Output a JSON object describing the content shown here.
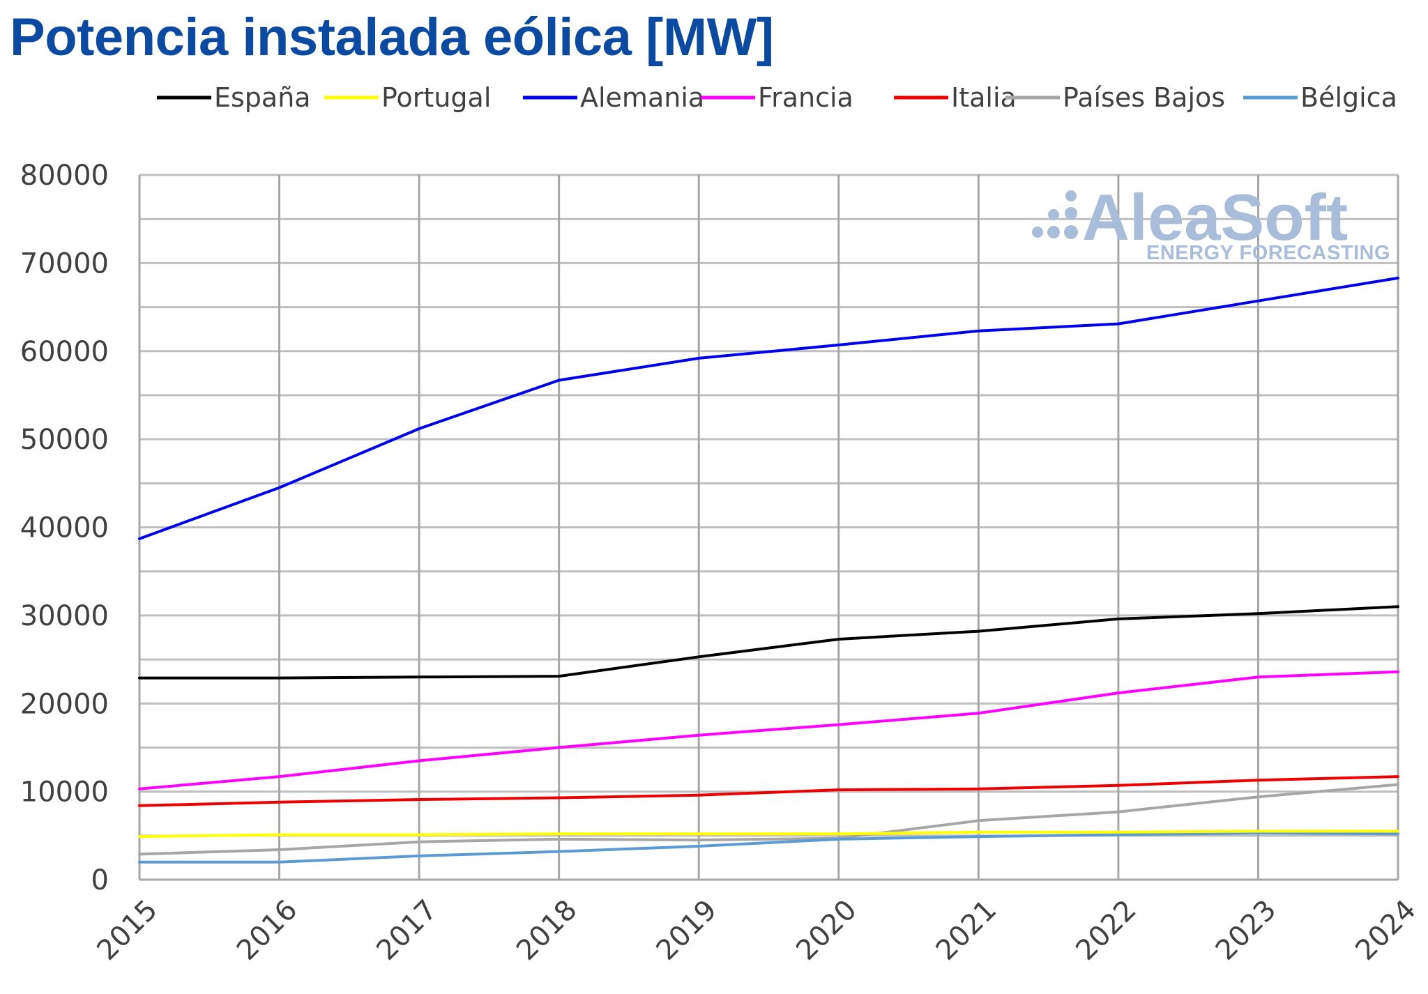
{
  "chart_data": {
    "type": "line",
    "title": "Potencia instalada eólica [MW]",
    "xlabel": "",
    "ylabel": "",
    "categories": [
      "2015",
      "2016",
      "2017",
      "2018",
      "2019",
      "2020",
      "2021",
      "2022",
      "2023",
      "2024"
    ],
    "ylim": [
      0,
      80000
    ],
    "y_ticks": [
      0,
      10000,
      20000,
      30000,
      40000,
      50000,
      60000,
      70000,
      80000
    ],
    "y_tick_labels": [
      "0",
      "10000",
      "20000",
      "30000",
      "40000",
      "50000",
      "60000",
      "70000",
      "80000"
    ],
    "grid": true,
    "legend_position": "top",
    "series": [
      {
        "name": "España",
        "color": "#000000",
        "values": [
          22900,
          22900,
          23000,
          23100,
          25300,
          27300,
          28200,
          29600,
          30200,
          31000
        ]
      },
      {
        "name": "Portugal",
        "color": "#ffff00",
        "values": [
          4900,
          5100,
          5100,
          5200,
          5200,
          5200,
          5400,
          5400,
          5500,
          5500
        ]
      },
      {
        "name": "Alemania",
        "color": "#0000ee",
        "values": [
          38700,
          44500,
          51200,
          56700,
          59200,
          60700,
          62300,
          63100,
          65700,
          68300
        ]
      },
      {
        "name": "Francia",
        "color": "#ff00ff",
        "values": [
          10300,
          11700,
          13500,
          15000,
          16400,
          17600,
          18900,
          21200,
          23000,
          23600
        ]
      },
      {
        "name": "Italia",
        "color": "#ee0000",
        "values": [
          8400,
          8800,
          9100,
          9300,
          9600,
          10200,
          10300,
          10700,
          11300,
          11700
        ]
      },
      {
        "name": "Países Bajos",
        "color": "#a6a6a6",
        "values": [
          2900,
          3400,
          4300,
          4600,
          4500,
          4700,
          6700,
          7700,
          9400,
          10800
        ]
      },
      {
        "name": "Bélgica",
        "color": "#5b9bd5",
        "values": [
          2000,
          2000,
          2700,
          3200,
          3800,
          4600,
          4900,
          5100,
          5300,
          5200
        ]
      }
    ]
  },
  "watermark": {
    "brand": "AleaSoft",
    "tagline": "ENERGY FORECASTING",
    "color": "#a9bcd9"
  },
  "style": {
    "title_color": "#0b4aa2",
    "grid_color": "#bfbfbf",
    "text_color": "#404040"
  }
}
